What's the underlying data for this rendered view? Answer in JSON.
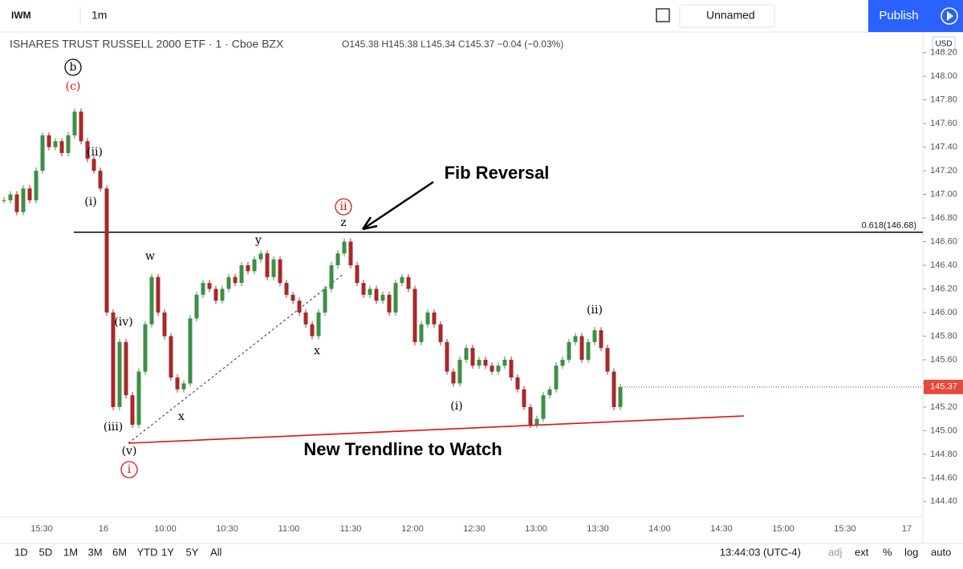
{
  "toolbar": {
    "symbol": "IWM",
    "interval": "1m",
    "layout_name": "Unnamed",
    "publish": "Publish"
  },
  "legend": {
    "title": "ISHARES TRUST RUSSELL 2000 ETF · 1 · Cboe BZX",
    "open": "O145.38",
    "high": "H145.38",
    "low": "L145.34",
    "close": "C145.37",
    "change": "−0.04 (−0.03%)"
  },
  "chart_data": {
    "type": "candlestick",
    "currency": "USD",
    "up_color": "#3d8f45",
    "down_color": "#a8282b",
    "closes": [
      146.95,
      147.0,
      146.85,
      147.05,
      146.95,
      147.2,
      147.5,
      147.4,
      147.45,
      147.35,
      147.5,
      147.7,
      147.45,
      147.3,
      147.2,
      147.05,
      146.0,
      145.2,
      145.75,
      145.3,
      145.05,
      145.5,
      145.9,
      146.3,
      146.0,
      145.8,
      145.45,
      145.35,
      145.4,
      145.95,
      146.15,
      146.25,
      146.2,
      146.1,
      146.2,
      146.3,
      146.25,
      146.4,
      146.35,
      146.45,
      146.5,
      146.3,
      146.45,
      146.25,
      146.15,
      146.1,
      146.0,
      145.9,
      145.8,
      146.0,
      146.2,
      146.4,
      146.5,
      146.6,
      146.4,
      146.25,
      146.15,
      146.2,
      146.1,
      146.15,
      146.0,
      146.25,
      146.3,
      146.2,
      145.75,
      145.9,
      146.0,
      145.9,
      145.75,
      145.5,
      145.4,
      145.6,
      145.7,
      145.55,
      145.6,
      145.55,
      145.5,
      145.55,
      145.6,
      145.45,
      145.35,
      145.2,
      145.05,
      145.1,
      145.3,
      145.35,
      145.55,
      145.6,
      145.75,
      145.8,
      145.6,
      145.75,
      145.85,
      145.7,
      145.5,
      145.2,
      145.37
    ],
    "last_price": {
      "value": 145.37,
      "label": "145.37"
    },
    "fib_level": {
      "value": 146.68,
      "label": "0.618(146.68)"
    },
    "ylim": [
      144.27,
      148.34
    ],
    "yticks": [
      {
        "value": 148.2,
        "label": "148.20"
      },
      {
        "value": 148.0,
        "label": "148.00"
      },
      {
        "value": 147.8,
        "label": "147.80"
      },
      {
        "value": 147.6,
        "label": "147.60"
      },
      {
        "value": 147.4,
        "label": "147.40"
      },
      {
        "value": 147.2,
        "label": "147.20"
      },
      {
        "value": 147.0,
        "label": "147.00"
      },
      {
        "value": 146.8,
        "label": "146.80"
      },
      {
        "value": 146.6,
        "label": "146.60"
      },
      {
        "value": 146.4,
        "label": "146.40"
      },
      {
        "value": 146.2,
        "label": "146.20"
      },
      {
        "value": 146.0,
        "label": "146.00"
      },
      {
        "value": 145.8,
        "label": "145.80"
      },
      {
        "value": 145.6,
        "label": "145.60"
      },
      {
        "value": 145.4,
        "label": "145.40"
      },
      {
        "value": 145.2,
        "label": "145.20"
      },
      {
        "value": 145.0,
        "label": "145.00"
      },
      {
        "value": 144.8,
        "label": "144.80"
      },
      {
        "value": 144.6,
        "label": "144.60"
      },
      {
        "value": 144.4,
        "label": "144.40"
      }
    ],
    "xticks": [
      "15:30",
      "16",
      "10:00",
      "10:30",
      "11:00",
      "11:30",
      "12:00",
      "12:30",
      "13:00",
      "13:30",
      "14:00",
      "14:30",
      "15:00",
      "15:30",
      "17"
    ],
    "annotations": [
      "b",
      "(c)",
      "(ii)",
      "(i)",
      "ii",
      "z",
      "Fib Reversal",
      "y",
      "w",
      "(iv)",
      "x",
      "(i)",
      "(ii)",
      "x",
      "(iii)",
      "(v)",
      "i",
      "New Trendline to Watch"
    ]
  },
  "bottom_bar": {
    "ranges": [
      "1D",
      "5D",
      "1M",
      "3M",
      "6M",
      "YTD",
      "1Y",
      "5Y",
      "All"
    ],
    "clock": "13:44:03 (UTC-4)",
    "options": [
      "adj",
      "ext",
      "%",
      "log",
      "auto"
    ]
  }
}
